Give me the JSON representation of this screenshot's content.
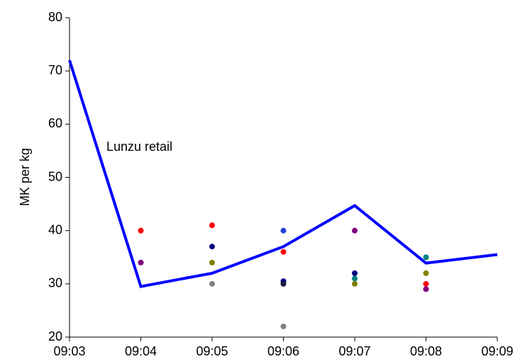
{
  "chart_data": {
    "type": "line",
    "ylabel": "MK per kg",
    "categories": [
      "09:03",
      "09:04",
      "09:05",
      "09:06",
      "09:07",
      "09:08",
      "09:09"
    ],
    "ylim": [
      20,
      80
    ],
    "yticks": [
      20,
      30,
      40,
      50,
      60,
      70,
      80
    ],
    "series": [
      {
        "name": "Lunzu retail",
        "mode": "line",
        "color": "#0000ff",
        "values": [
          72,
          29.5,
          32,
          37,
          44.7,
          33.9,
          35.5
        ]
      },
      {
        "mode": "markers",
        "color": "#ff0000",
        "values": [
          null,
          40,
          41,
          36,
          null,
          30,
          null
        ]
      },
      {
        "mode": "markers",
        "color": "#800080",
        "values": [
          null,
          34,
          null,
          null,
          40,
          29,
          null
        ]
      },
      {
        "mode": "markers",
        "color": "#000080",
        "values": [
          null,
          null,
          37,
          30.5,
          32,
          null,
          null
        ]
      },
      {
        "mode": "markers",
        "color": "#1a1a40",
        "values": [
          null,
          null,
          null,
          30,
          null,
          null,
          null
        ]
      },
      {
        "mode": "markers",
        "color": "#808000",
        "values": [
          null,
          null,
          34,
          null,
          30,
          32,
          null
        ]
      },
      {
        "mode": "markers",
        "color": "#808080",
        "values": [
          null,
          null,
          30,
          22,
          null,
          null,
          null
        ]
      },
      {
        "mode": "markers",
        "color": "#1f3fd8",
        "values": [
          null,
          null,
          null,
          40,
          null,
          null,
          null
        ]
      },
      {
        "mode": "markers",
        "color": "#008080",
        "values": [
          null,
          null,
          null,
          null,
          31,
          35,
          null
        ]
      }
    ]
  }
}
